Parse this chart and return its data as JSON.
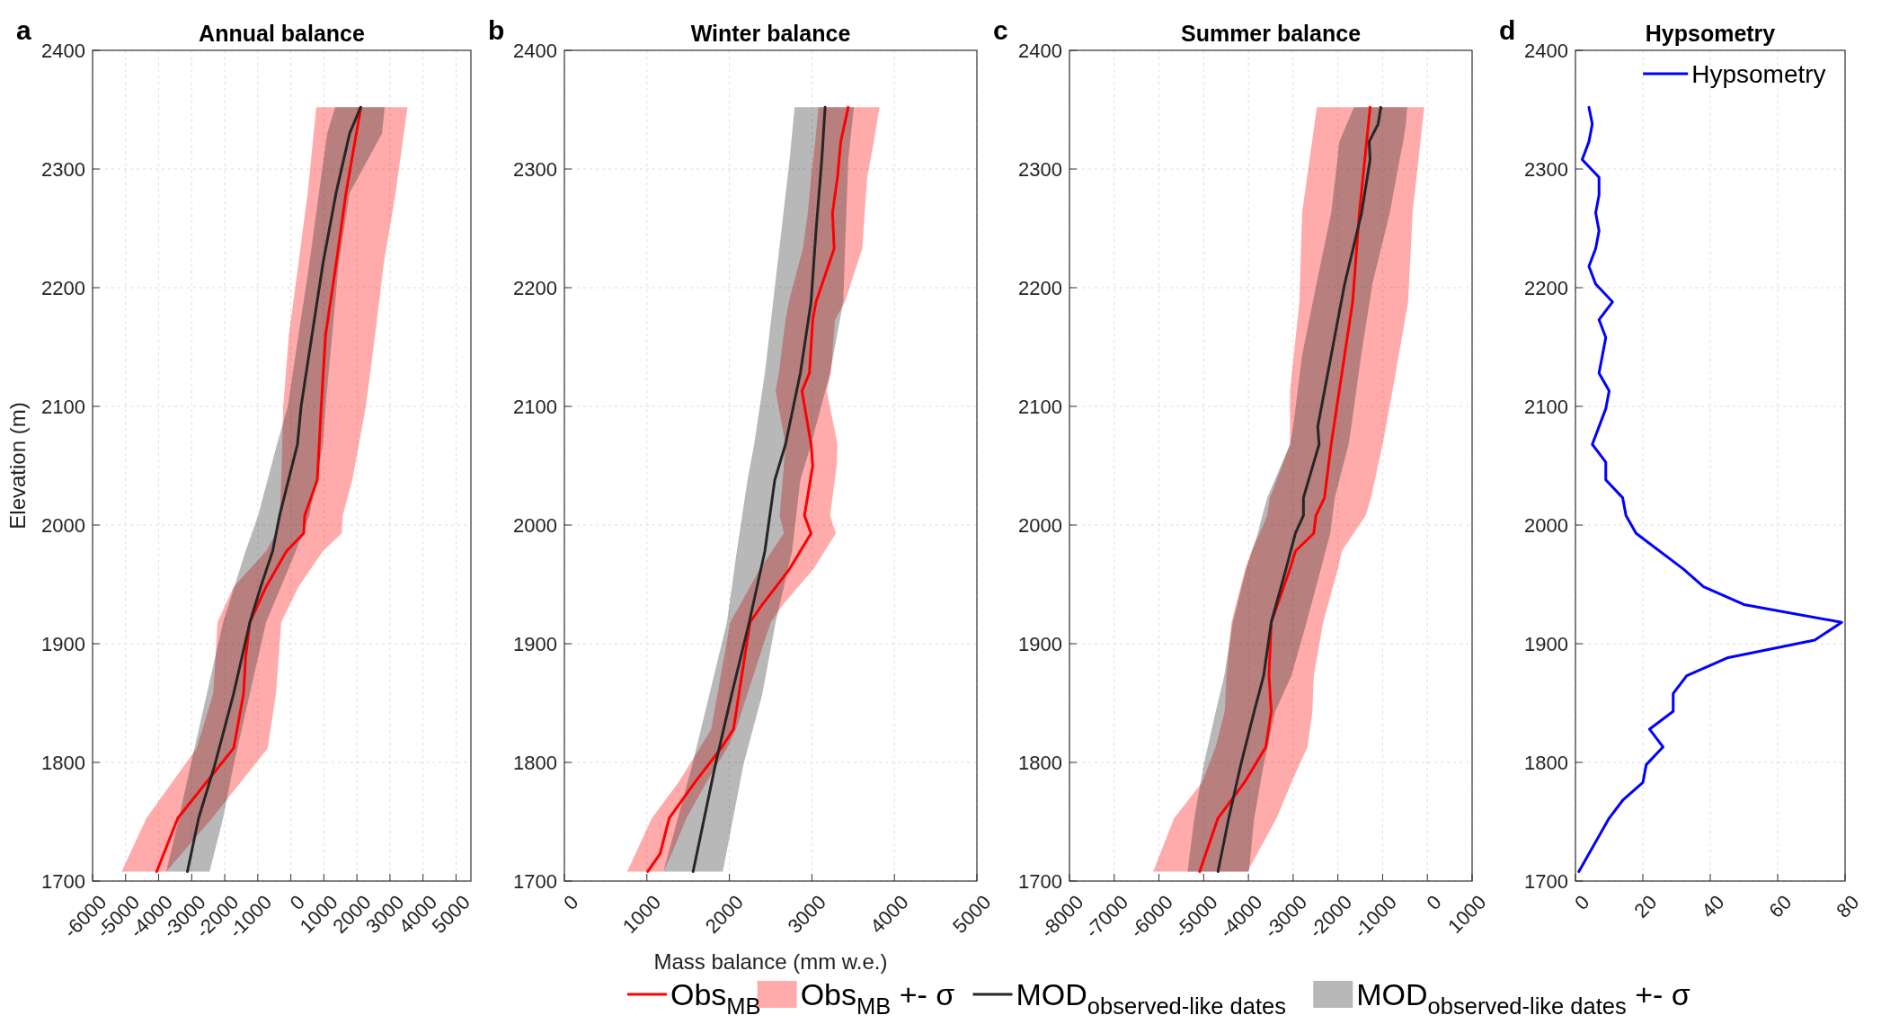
{
  "chart_data": [
    {
      "type": "line",
      "orientation": "horizontal",
      "title": "Annual balance",
      "ylabel": "Elevation (m)",
      "annotations": [
        "a"
      ],
      "xlim": [
        -6000,
        5450
      ],
      "xticks": [
        -6000,
        -5000,
        -4000,
        -3000,
        -2000,
        -1000,
        0,
        1000,
        2000,
        3000,
        4000,
        5000
      ],
      "ylim": [
        1700,
        2400
      ],
      "yticks": [
        1700,
        1800,
        1900,
        2000,
        2100,
        2200,
        2300,
        2400
      ],
      "grid": true,
      "series": [
        {
          "color": "#ff0000",
          "x": [
            1708,
            1753,
            1812,
            1858,
            1888,
            1918,
            1948,
            1978,
            1993,
            2008,
            2038,
            2100,
            2160,
            2220,
            2280,
            2352
          ],
          "values": [
            -4060,
            -3420,
            -1730,
            -1430,
            -1370,
            -1240,
            -750,
            -130,
            390,
            420,
            800,
            920,
            1050,
            1370,
            1670,
            2120
          ],
          "lower": [
            -5120,
            -4370,
            -2850,
            -2350,
            -2280,
            -2220,
            -1730,
            -750,
            -450,
            -340,
            -290,
            -230,
            -60,
            230,
            510,
            770
          ],
          "upper": [
            -3770,
            -2380,
            -700,
            -450,
            -370,
            -290,
            230,
            970,
            1540,
            1570,
            1860,
            2270,
            2550,
            2810,
            3170,
            3530
          ]
        },
        {
          "color": "#262626",
          "x": [
            1708,
            1753,
            1798,
            1858,
            1918,
            1948,
            1978,
            2008,
            2068,
            2100,
            2160,
            2220,
            2280,
            2330,
            2352
          ],
          "values": [
            -3130,
            -2790,
            -2300,
            -1730,
            -1240,
            -910,
            -550,
            -340,
            200,
            310,
            640,
            970,
            1370,
            1780,
            2110
          ],
          "lower": [
            -3770,
            -3390,
            -3030,
            -2540,
            -2050,
            -1710,
            -1370,
            -990,
            -420,
            -90,
            230,
            560,
            850,
            1100,
            1340
          ],
          "upper": [
            -2460,
            -2050,
            -1730,
            -1240,
            -750,
            -300,
            150,
            560,
            970,
            1050,
            1250,
            1450,
            1780,
            2760,
            2840
          ]
        }
      ]
    },
    {
      "type": "line",
      "orientation": "horizontal",
      "title": "Winter balance",
      "xlabel": "Mass balance (mm w.e.)",
      "annotations": [
        "b",
        "Obs$_{MB}$ +- σ",
        "MOD$_{observed-like dates}$ +- σ"
      ],
      "xlim": [
        0,
        5000
      ],
      "xticks": [
        0,
        1000,
        2000,
        3000,
        4000,
        5000
      ],
      "ylim": [
        1700,
        2400
      ],
      "yticks": [
        1700,
        1800,
        1900,
        2000,
        2100,
        2200,
        2300,
        2400
      ],
      "grid": true,
      "legend": "bottom",
      "series": [
        {
          "name": "Obs$_{MB}$",
          "color": "#ff0000",
          "x": [
            1708,
            1723,
            1753,
            1783,
            1813,
            1828,
            1918,
            1933,
            1963,
            1993,
            2008,
            2050,
            2068,
            2113,
            2128,
            2173,
            2188,
            2233,
            2263,
            2293,
            2323,
            2352
          ],
          "values": [
            1010,
            1160,
            1270,
            1580,
            1910,
            2050,
            2250,
            2400,
            2730,
            2990,
            2910,
            3010,
            2990,
            2880,
            2970,
            3010,
            3050,
            3270,
            3250,
            3310,
            3350,
            3440
          ],
          "lower": [
            760,
            860,
            1060,
            1380,
            1650,
            1780,
            2010,
            2130,
            2370,
            2660,
            2610,
            2660,
            2680,
            2560,
            2600,
            2680,
            2720,
            2890,
            2950,
            2990,
            3040,
            3080
          ],
          "upper": [
            1200,
            1300,
            1480,
            1720,
            1980,
            2080,
            2500,
            2650,
            3020,
            3290,
            3220,
            3300,
            3310,
            3180,
            3230,
            3280,
            3400,
            3610,
            3640,
            3670,
            3750,
            3820
          ]
        },
        {
          "name": "MOD$_{observed-like dates}$",
          "color": "#262626",
          "x": [
            1708,
            1798,
            1858,
            1918,
            1978,
            2038,
            2068,
            2128,
            2188,
            2248,
            2308,
            2352
          ],
          "values": [
            1560,
            1830,
            2030,
            2240,
            2430,
            2550,
            2680,
            2860,
            2990,
            3050,
            3120,
            3160
          ],
          "lower": [
            1200,
            1550,
            1760,
            1970,
            2090,
            2220,
            2300,
            2430,
            2530,
            2630,
            2730,
            2790
          ],
          "upper": [
            1920,
            2170,
            2400,
            2560,
            2760,
            2860,
            2990,
            3220,
            3380,
            3410,
            3440,
            3510
          ]
        }
      ]
    },
    {
      "type": "line",
      "orientation": "horizontal",
      "title": "Summer balance",
      "annotations": [
        "c"
      ],
      "xlim": [
        -8000,
        1000
      ],
      "xticks": [
        -8000,
        -7000,
        -6000,
        -5000,
        -4000,
        -3000,
        -2000,
        -1000,
        0,
        1000
      ],
      "ylim": [
        1700,
        2400
      ],
      "yticks": [
        1700,
        1800,
        1900,
        2000,
        2100,
        2200,
        2300,
        2400
      ],
      "grid": true,
      "series": [
        {
          "color": "#ff0000",
          "x": [
            1708,
            1753,
            1783,
            1813,
            1843,
            1873,
            1918,
            1963,
            1978,
            1993,
            2008,
            2023,
            2068,
            2113,
            2188,
            2263,
            2352
          ],
          "values": [
            -5090,
            -4680,
            -4090,
            -3610,
            -3490,
            -3540,
            -3490,
            -3070,
            -2950,
            -2540,
            -2490,
            -2300,
            -2150,
            -1970,
            -1670,
            -1520,
            -1280
          ],
          "lower": [
            -6130,
            -5660,
            -5040,
            -4730,
            -4530,
            -4490,
            -4380,
            -4070,
            -3930,
            -3750,
            -3580,
            -3520,
            -3070,
            -3070,
            -2860,
            -2800,
            -2470
          ],
          "upper": [
            -4020,
            -3370,
            -3040,
            -2680,
            -2570,
            -2540,
            -2330,
            -2000,
            -1910,
            -1650,
            -1380,
            -1260,
            -1000,
            -780,
            -430,
            -330,
            -70
          ]
        },
        {
          "color": "#262626",
          "x": [
            1708,
            1753,
            1798,
            1843,
            1873,
            1918,
            1963,
            1993,
            2008,
            2023,
            2068,
            2083,
            2143,
            2203,
            2263,
            2308,
            2323,
            2338,
            2352
          ],
          "values": [
            -4680,
            -4440,
            -4170,
            -3870,
            -3660,
            -3490,
            -3160,
            -2950,
            -2770,
            -2770,
            -2420,
            -2450,
            -2150,
            -1850,
            -1470,
            -1280,
            -1300,
            -1100,
            -1040
          ],
          "lower": [
            -5360,
            -5210,
            -5000,
            -4730,
            -4540,
            -4350,
            -4050,
            -3790,
            -3690,
            -3580,
            -3070,
            -3000,
            -2800,
            -2480,
            -2150,
            -2010,
            -1970,
            -1800,
            -1640
          ],
          "upper": [
            -3990,
            -3870,
            -3660,
            -3400,
            -3040,
            -2700,
            -2380,
            -2170,
            -2120,
            -2070,
            -1760,
            -1700,
            -1480,
            -1230,
            -840,
            -620,
            -540,
            -480,
            -450
          ]
        }
      ]
    },
    {
      "type": "line",
      "orientation": "horizontal",
      "title": "Hypsometry",
      "annotations": [
        "d"
      ],
      "xlim": [
        0,
        80
      ],
      "xticks": [
        0,
        20,
        40,
        60,
        80
      ],
      "ylim": [
        1700,
        2400
      ],
      "yticks": [
        1700,
        1800,
        1900,
        2000,
        2100,
        2200,
        2300,
        2400
      ],
      "grid": true,
      "legend": "top right",
      "series": [
        {
          "name": "Hypsometry",
          "color": "#0000ff",
          "x": [
            1708,
            1753,
            1768,
            1783,
            1798,
            1813,
            1828,
            1843,
            1858,
            1873,
            1888,
            1903,
            1918,
            1933,
            1948,
            1963,
            1993,
            2008,
            2023,
            2038,
            2053,
            2068,
            2098,
            2113,
            2128,
            2158,
            2173,
            2188,
            2203,
            2218,
            2233,
            2248,
            2263,
            2278,
            2293,
            2308,
            2323,
            2338,
            2352
          ],
          "values": [
            1,
            10,
            14,
            20,
            21,
            26,
            22,
            29,
            29,
            33,
            45,
            71,
            79,
            50,
            38,
            32,
            18,
            15,
            14,
            9,
            9,
            5,
            9,
            10,
            7,
            9,
            7,
            11,
            6,
            4,
            6,
            7,
            6,
            7,
            7,
            2,
            4,
            5,
            4
          ]
        }
      ]
    }
  ]
}
